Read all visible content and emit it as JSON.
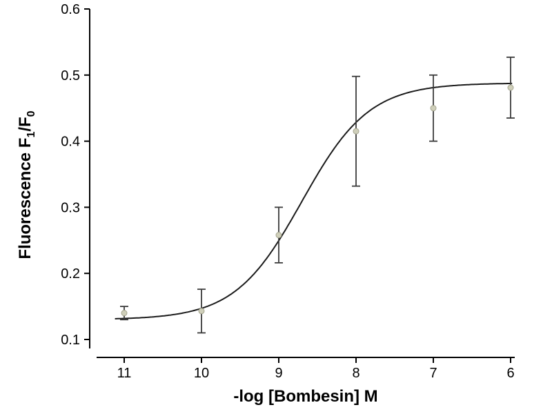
{
  "chart_data": {
    "type": "scatter",
    "title": "",
    "xlabel": "-log [Bombesin] M",
    "ylabel": "Fluorescence F1/F0",
    "ylabel_segments": [
      {
        "t": "Fluorescence F"
      },
      {
        "t": "1",
        "sub": true
      },
      {
        "t": "/F"
      },
      {
        "t": "0",
        "sub": true
      }
    ],
    "x": [
      11,
      10,
      9,
      8,
      7,
      6
    ],
    "y": [
      0.14,
      0.143,
      0.258,
      0.415,
      0.45,
      0.481
    ],
    "yerr": [
      0.01,
      0.033,
      0.042,
      0.083,
      0.05,
      0.046
    ],
    "x_reversed": true,
    "xlim": [
      11.4,
      5.9
    ],
    "ylim": [
      0.1,
      0.6
    ],
    "xticks": [
      11,
      10,
      9,
      8,
      7,
      6
    ],
    "yticks": [
      0.1,
      0.2,
      0.3,
      0.4,
      0.5,
      0.6
    ],
    "fit_curve": {
      "model": "4-parameter-logistic",
      "bottom": 0.13,
      "top": 0.488,
      "pec50": 8.7,
      "hill": 1.0,
      "x_start": 11.12,
      "x_end": 5.98
    },
    "grid": false,
    "legend": null,
    "marker_color": "#cfcfba",
    "marker_edge": "#a4a48e",
    "line_color": "#1a1a1a",
    "errorbar_color": "#3a3a3a",
    "axis_color": "#000000"
  }
}
